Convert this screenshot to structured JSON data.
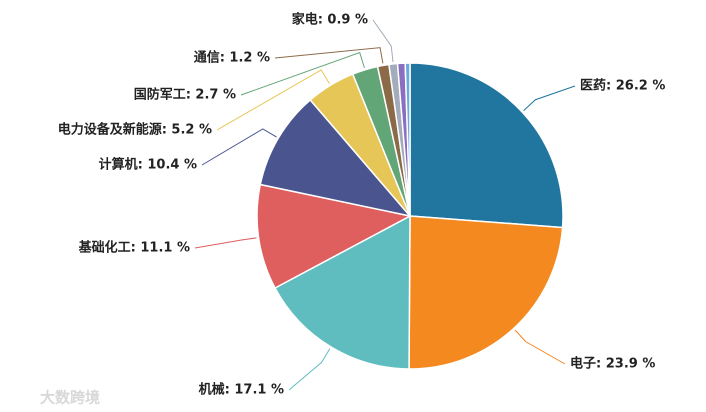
{
  "chart_data": {
    "type": "pie",
    "labels": [
      "医药: 26.2 %",
      "电子: 23.9 %",
      "机械: 17.1 %",
      "基础化工: 11.1 %",
      "计算机: 10.4 %",
      "电力设备及新能源: 5.2 %",
      "国防军工: 2.7 %",
      "通信: 1.2 %",
      "家电: 0.9 %",
      null,
      null
    ],
    "values": [
      26.2,
      23.9,
      17.1,
      11.1,
      10.4,
      5.2,
      2.7,
      1.2,
      0.9,
      0.8,
      0.5
    ],
    "colors": [
      "#21769f",
      "#f4891f",
      "#60bdbf",
      "#df5e5e",
      "#4a5590",
      "#e6c656",
      "#62a678",
      "#8b6a48",
      "#a2acbc",
      "#8a6ec2",
      "#6aa9d9"
    ],
    "watermark": "大数跨境"
  }
}
